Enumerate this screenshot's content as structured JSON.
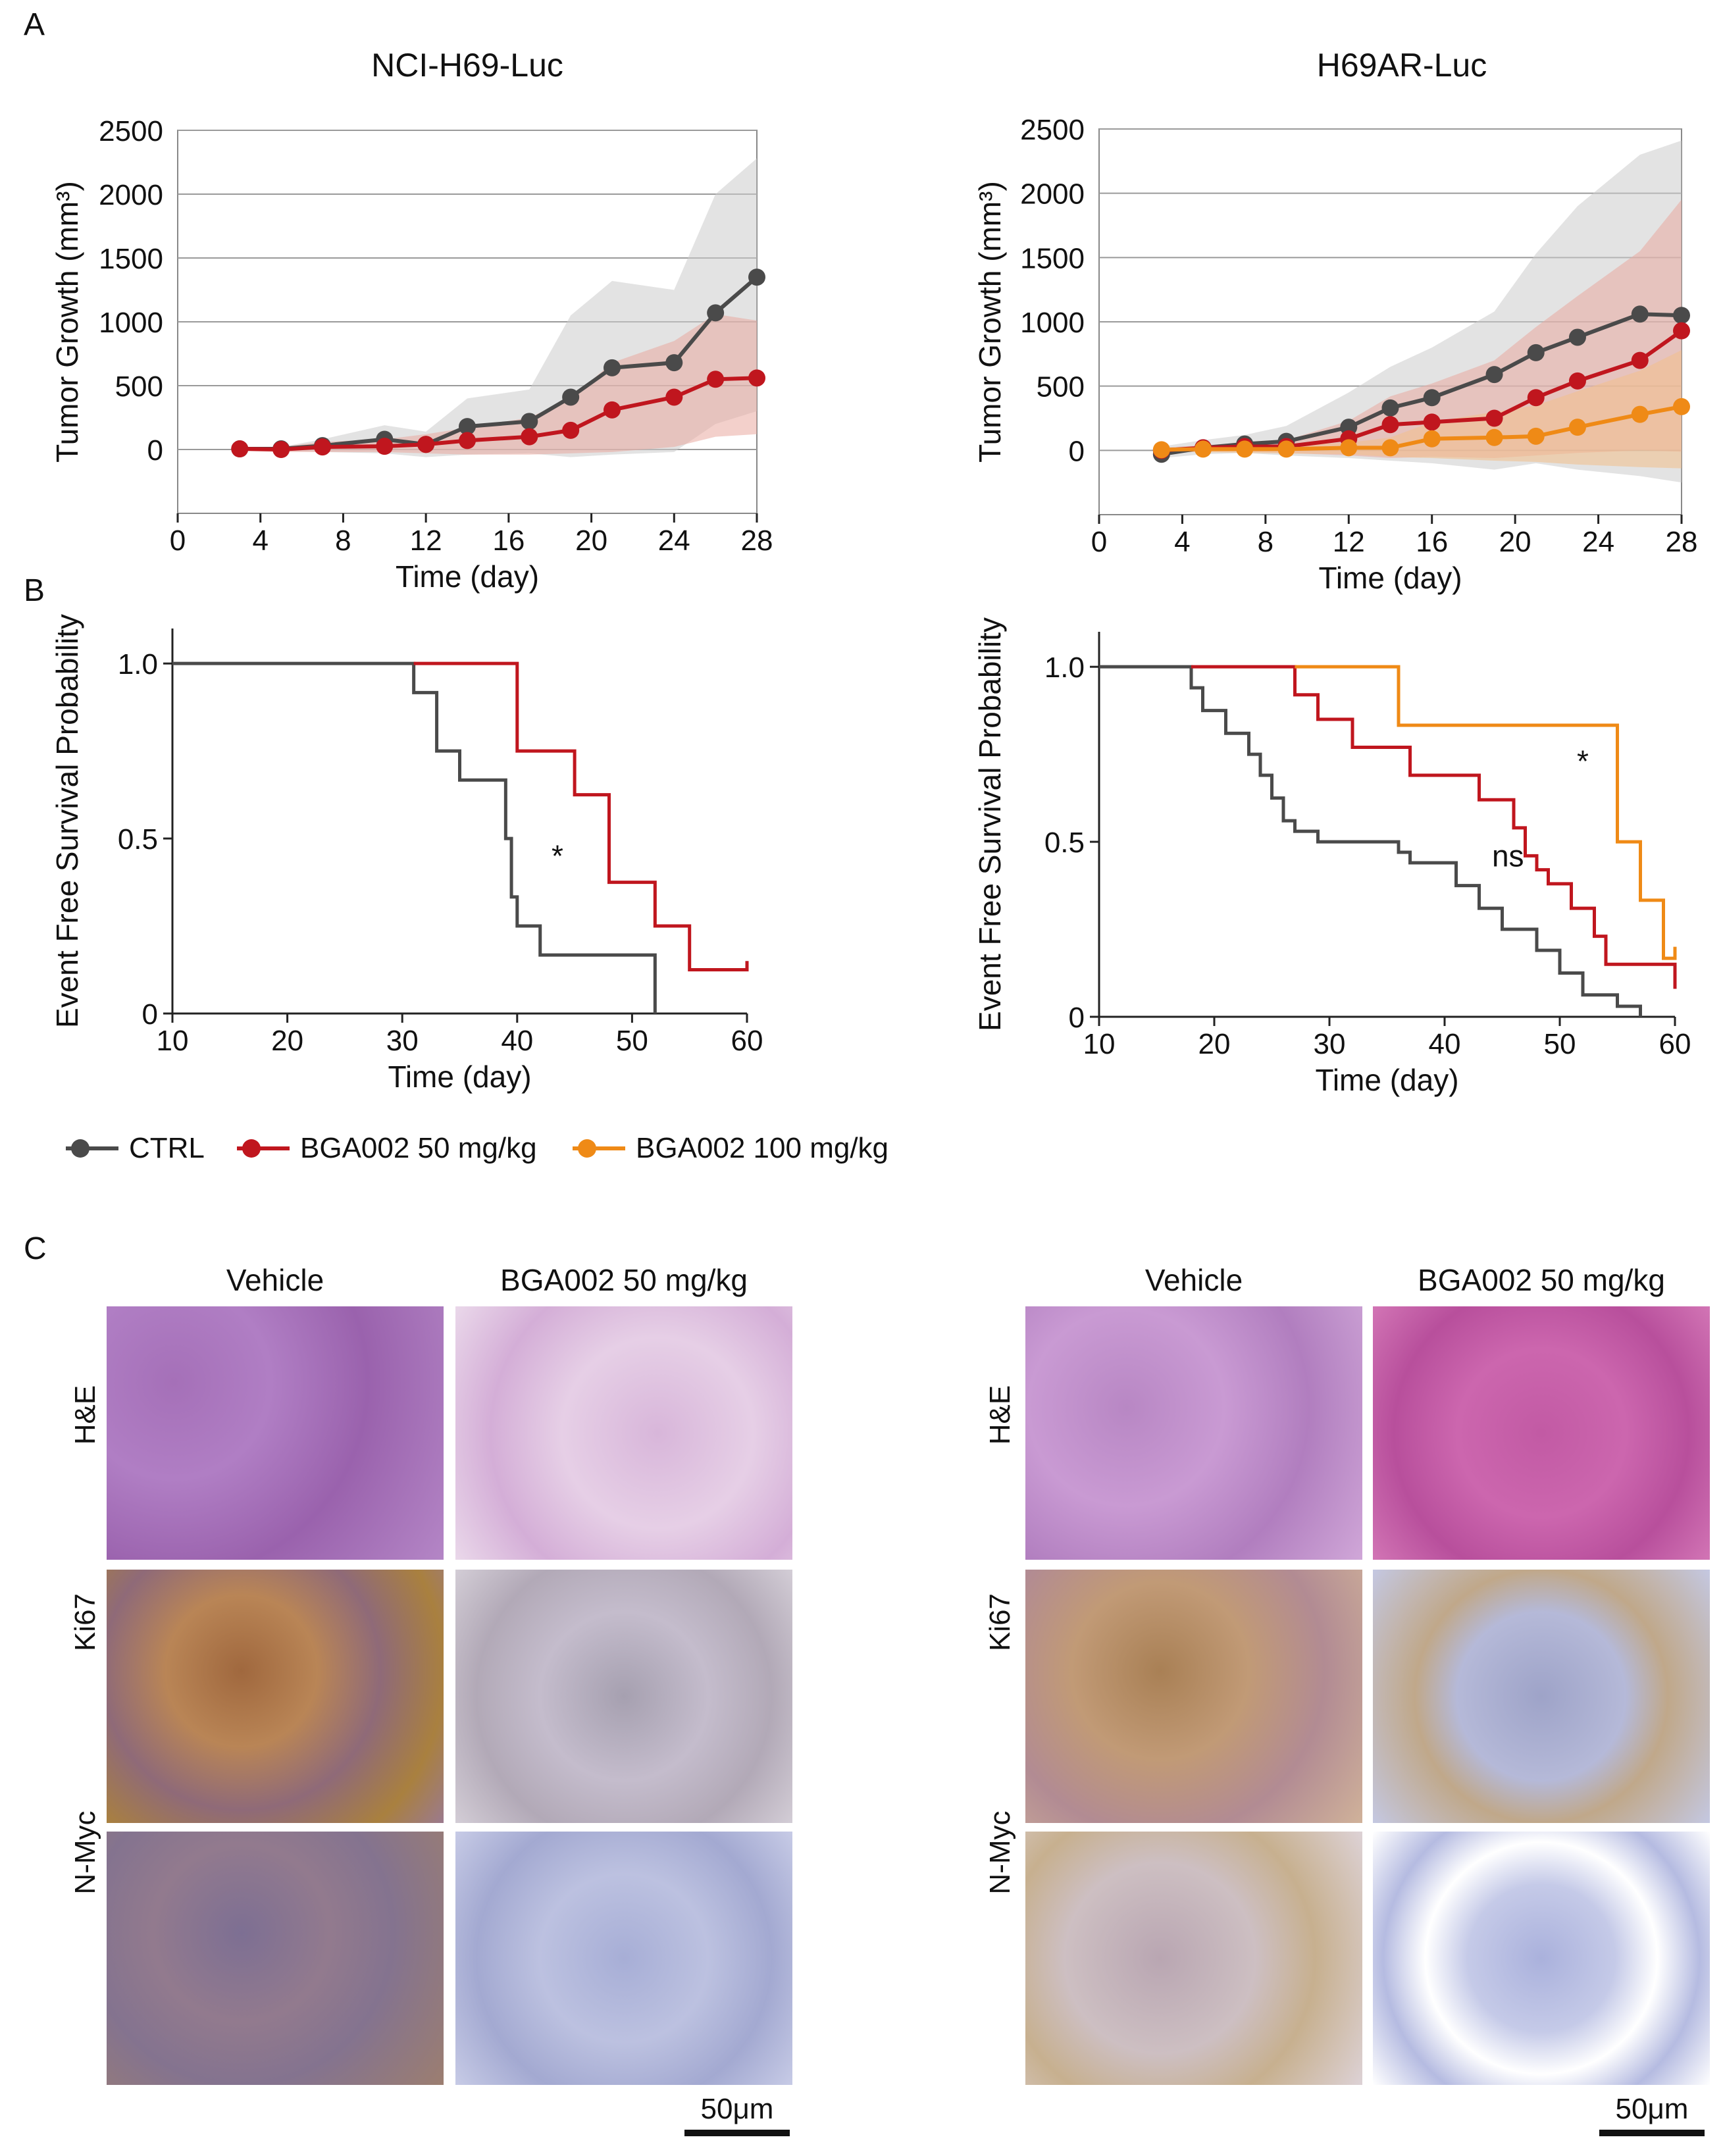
{
  "panel_labels": {
    "a": "A",
    "b": "B",
    "c": "C"
  },
  "colors": {
    "ctrl": "#4a4a4a",
    "bga50": "#c0161e",
    "bga100": "#ef8a16",
    "band_ctrl": "#cccccc",
    "band_bga50": "#e9a9a0",
    "band_bga100": "#f2c08a"
  },
  "legend": {
    "ctrl": "CTRL",
    "bga50": "BGA002 50 mg/kg",
    "bga100": "BGA002 100 mg/kg"
  },
  "chart_data": [
    {
      "id": "growth-left",
      "type": "line",
      "title": "NCI-H69-Luc",
      "xlabel": "Time (day)",
      "ylabel": "Tumor Growth (mm³)",
      "xlim": [
        0,
        28
      ],
      "ylim": [
        -500,
        2500
      ],
      "xticks": [
        0,
        4,
        8,
        12,
        16,
        20,
        24,
        28
      ],
      "yticks": [
        0,
        500,
        1000,
        1500,
        2000,
        2500
      ],
      "series": [
        {
          "name": "CTRL",
          "color_key": "ctrl",
          "x": [
            3,
            5,
            7,
            10,
            12,
            14,
            17,
            19,
            21,
            24,
            26,
            28
          ],
          "y": [
            5,
            5,
            30,
            80,
            40,
            180,
            220,
            410,
            640,
            680,
            1070,
            1350
          ],
          "band": [
            [
              3,
              -10,
              20
            ],
            [
              5,
              -10,
              20
            ],
            [
              7,
              -20,
              80
            ],
            [
              10,
              -30,
              190
            ],
            [
              12,
              -60,
              140
            ],
            [
              14,
              -40,
              400
            ],
            [
              17,
              -30,
              470
            ],
            [
              19,
              -60,
              1050
            ],
            [
              21,
              -40,
              1320
            ],
            [
              24,
              -20,
              1250
            ],
            [
              26,
              200,
              2000
            ],
            [
              28,
              300,
              2280
            ]
          ]
        },
        {
          "name": "BGA002 50 mg/kg",
          "color_key": "bga50",
          "x": [
            3,
            5,
            7,
            10,
            12,
            14,
            17,
            19,
            21,
            24,
            26,
            28
          ],
          "y": [
            5,
            0,
            20,
            25,
            40,
            70,
            100,
            150,
            310,
            410,
            550,
            560
          ],
          "band": [
            [
              3,
              -10,
              20
            ],
            [
              5,
              -20,
              20
            ],
            [
              7,
              -20,
              60
            ],
            [
              10,
              -20,
              80
            ],
            [
              12,
              -30,
              120
            ],
            [
              14,
              -40,
              170
            ],
            [
              17,
              -40,
              250
            ],
            [
              19,
              -30,
              400
            ],
            [
              21,
              -20,
              680
            ],
            [
              24,
              20,
              850
            ],
            [
              26,
              100,
              1060
            ],
            [
              28,
              120,
              1010
            ]
          ]
        }
      ]
    },
    {
      "id": "growth-right",
      "type": "line",
      "title": "H69AR-Luc",
      "xlabel": "Time (day)",
      "ylabel": "Tumor Growth (mm³)",
      "xlim": [
        0,
        28
      ],
      "ylim": [
        -500,
        2500
      ],
      "xticks": [
        0,
        4,
        8,
        12,
        16,
        20,
        24,
        28
      ],
      "yticks": [
        0,
        500,
        1000,
        1500,
        2000,
        2500
      ],
      "series": [
        {
          "name": "CTRL",
          "color_key": "ctrl",
          "x": [
            3,
            5,
            7,
            9,
            12,
            14,
            16,
            19,
            21,
            23,
            26,
            28
          ],
          "y": [
            -30,
            20,
            50,
            70,
            180,
            330,
            410,
            590,
            760,
            880,
            1060,
            1050
          ],
          "band": [
            [
              3,
              -60,
              30
            ],
            [
              5,
              -30,
              80
            ],
            [
              7,
              -20,
              120
            ],
            [
              9,
              -40,
              190
            ],
            [
              12,
              -60,
              450
            ],
            [
              14,
              -80,
              650
            ],
            [
              16,
              -100,
              800
            ],
            [
              19,
              -150,
              1080
            ],
            [
              21,
              -100,
              1530
            ],
            [
              23,
              -150,
              1900
            ],
            [
              26,
              -200,
              2300
            ],
            [
              28,
              -250,
              2410
            ]
          ]
        },
        {
          "name": "BGA002 50 mg/kg",
          "color_key": "bga50",
          "x": [
            3,
            5,
            7,
            9,
            12,
            14,
            16,
            19,
            21,
            23,
            26,
            28
          ],
          "y": [
            0,
            20,
            30,
            30,
            90,
            200,
            220,
            250,
            410,
            540,
            700,
            930
          ],
          "band": [
            [
              3,
              -20,
              20
            ],
            [
              5,
              -10,
              40
            ],
            [
              7,
              -10,
              60
            ],
            [
              9,
              -20,
              80
            ],
            [
              12,
              -40,
              230
            ],
            [
              14,
              -60,
              420
            ],
            [
              16,
              -50,
              520
            ],
            [
              19,
              -60,
              700
            ],
            [
              21,
              -40,
              960
            ],
            [
              23,
              -20,
              1200
            ],
            [
              26,
              0,
              1550
            ],
            [
              28,
              -10,
              1950
            ]
          ]
        },
        {
          "name": "BGA002 100 mg/kg",
          "color_key": "bga100",
          "x": [
            3,
            5,
            7,
            9,
            12,
            14,
            16,
            19,
            21,
            23,
            26,
            28
          ],
          "y": [
            5,
            10,
            10,
            10,
            20,
            20,
            90,
            100,
            110,
            180,
            280,
            340
          ],
          "band": [
            [
              3,
              -10,
              15
            ],
            [
              5,
              -15,
              30
            ],
            [
              7,
              -20,
              40
            ],
            [
              9,
              -25,
              40
            ],
            [
              12,
              -30,
              60
            ],
            [
              14,
              -50,
              100
            ],
            [
              16,
              -60,
              220
            ],
            [
              19,
              -80,
              300
            ],
            [
              21,
              -90,
              350
            ],
            [
              23,
              -110,
              460
            ],
            [
              26,
              -130,
              620
            ],
            [
              28,
              -140,
              780
            ]
          ]
        }
      ]
    },
    {
      "id": "survival-left",
      "type": "line",
      "subtype": "step",
      "xlabel": "Time (day)",
      "ylabel": "Event Free Survival Probability",
      "xlim": [
        10,
        60
      ],
      "ylim": [
        0,
        1.1
      ],
      "xticks": [
        10,
        20,
        30,
        40,
        50,
        60
      ],
      "yticks": [
        0,
        0.5,
        1.0
      ],
      "ytick_labels": [
        "0",
        "0.5",
        "1.0"
      ],
      "annotations": [
        {
          "text": "*",
          "x": 43.5,
          "y": 0.42
        }
      ],
      "series": [
        {
          "name": "CTRL",
          "color_key": "ctrl",
          "x": [
            10,
            31,
            33,
            35,
            39,
            39.5,
            40,
            42,
            52,
            52
          ],
          "y": [
            1.0,
            0.917,
            0.75,
            0.667,
            0.5,
            0.333,
            0.25,
            0.167,
            0.167,
            0.0
          ]
        },
        {
          "name": "BGA002 50 mg/kg",
          "color_key": "bga50",
          "x": [
            31,
            40,
            45,
            48,
            52,
            55,
            60,
            60
          ],
          "y": [
            1.0,
            0.75,
            0.625,
            0.375,
            0.25,
            0.125,
            0.125,
            0.15
          ]
        }
      ]
    },
    {
      "id": "survival-right",
      "type": "line",
      "subtype": "step",
      "xlabel": "Time (day)",
      "ylabel": "Event Free Survival Probability",
      "xlim": [
        10,
        60
      ],
      "ylim": [
        0,
        1.1
      ],
      "xticks": [
        10,
        20,
        30,
        40,
        50,
        60
      ],
      "yticks": [
        0,
        0.5,
        1.0
      ],
      "ytick_labels": [
        "0",
        "0.5",
        "1.0"
      ],
      "annotations": [
        {
          "text": "*",
          "x": 52,
          "y": 0.7
        },
        {
          "text": "ns",
          "x": 45.5,
          "y": 0.43
        }
      ],
      "series": [
        {
          "name": "CTRL",
          "color_key": "ctrl",
          "x": [
            10,
            18,
            19,
            21,
            23,
            24,
            25,
            26,
            27,
            29,
            36,
            37,
            41,
            43,
            45,
            48,
            50,
            52,
            53,
            55,
            57
          ],
          "y": [
            1.0,
            0.94,
            0.875,
            0.81,
            0.75,
            0.69,
            0.625,
            0.56,
            0.53,
            0.5,
            0.47,
            0.44,
            0.375,
            0.31,
            0.25,
            0.19,
            0.125,
            0.0625,
            0.0625,
            0.03,
            0.0
          ]
        },
        {
          "name": "BGA002 50 mg/kg",
          "color_key": "bga50",
          "x": [
            18,
            27,
            29,
            32,
            37,
            43,
            46,
            47,
            48,
            49,
            51,
            53,
            54,
            60,
            60
          ],
          "y": [
            1.0,
            0.92,
            0.85,
            0.77,
            0.69,
            0.62,
            0.54,
            0.46,
            0.42,
            0.38,
            0.31,
            0.23,
            0.15,
            0.15,
            0.08
          ]
        },
        {
          "name": "BGA002 100 mg/kg",
          "color_key": "bga100",
          "x": [
            27,
            36,
            55,
            57,
            59,
            60,
            60
          ],
          "y": [
            1.0,
            0.833,
            0.5,
            0.333,
            0.167,
            0.167,
            0.2
          ]
        }
      ]
    }
  ],
  "histology": {
    "left": {
      "col_headers": [
        "Vehicle",
        "BGA002 50 mg/kg"
      ]
    },
    "right": {
      "col_headers": [
        "Vehicle",
        "BGA002 50 mg/kg"
      ]
    },
    "row_labels": [
      "H&E",
      "Ki67",
      "N-Myc"
    ],
    "scalebar_label": "50μm"
  }
}
